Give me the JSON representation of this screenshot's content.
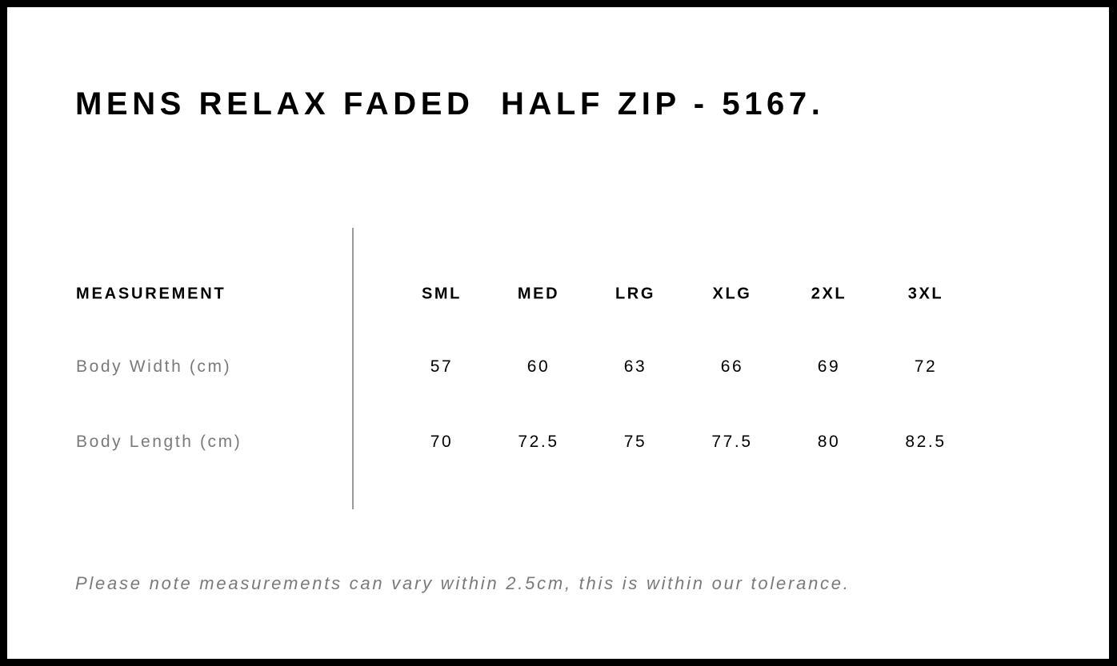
{
  "title": "MENS RELAX FADED  HALF ZIP - 5167.",
  "table": {
    "header_label": "MEASUREMENT",
    "sizes": [
      "SML",
      "MED",
      "LRG",
      "XLG",
      "2XL",
      "3XL"
    ],
    "rows": [
      {
        "label": "Body Width (cm)",
        "values": [
          "57",
          "60",
          "63",
          "66",
          "69",
          "72"
        ]
      },
      {
        "label": "Body Length (cm)",
        "values": [
          "70",
          "72.5",
          "75",
          "77.5",
          "80",
          "82.5"
        ]
      }
    ]
  },
  "note": "Please note measurements can vary within 2.5cm, this is within our tolerance."
}
